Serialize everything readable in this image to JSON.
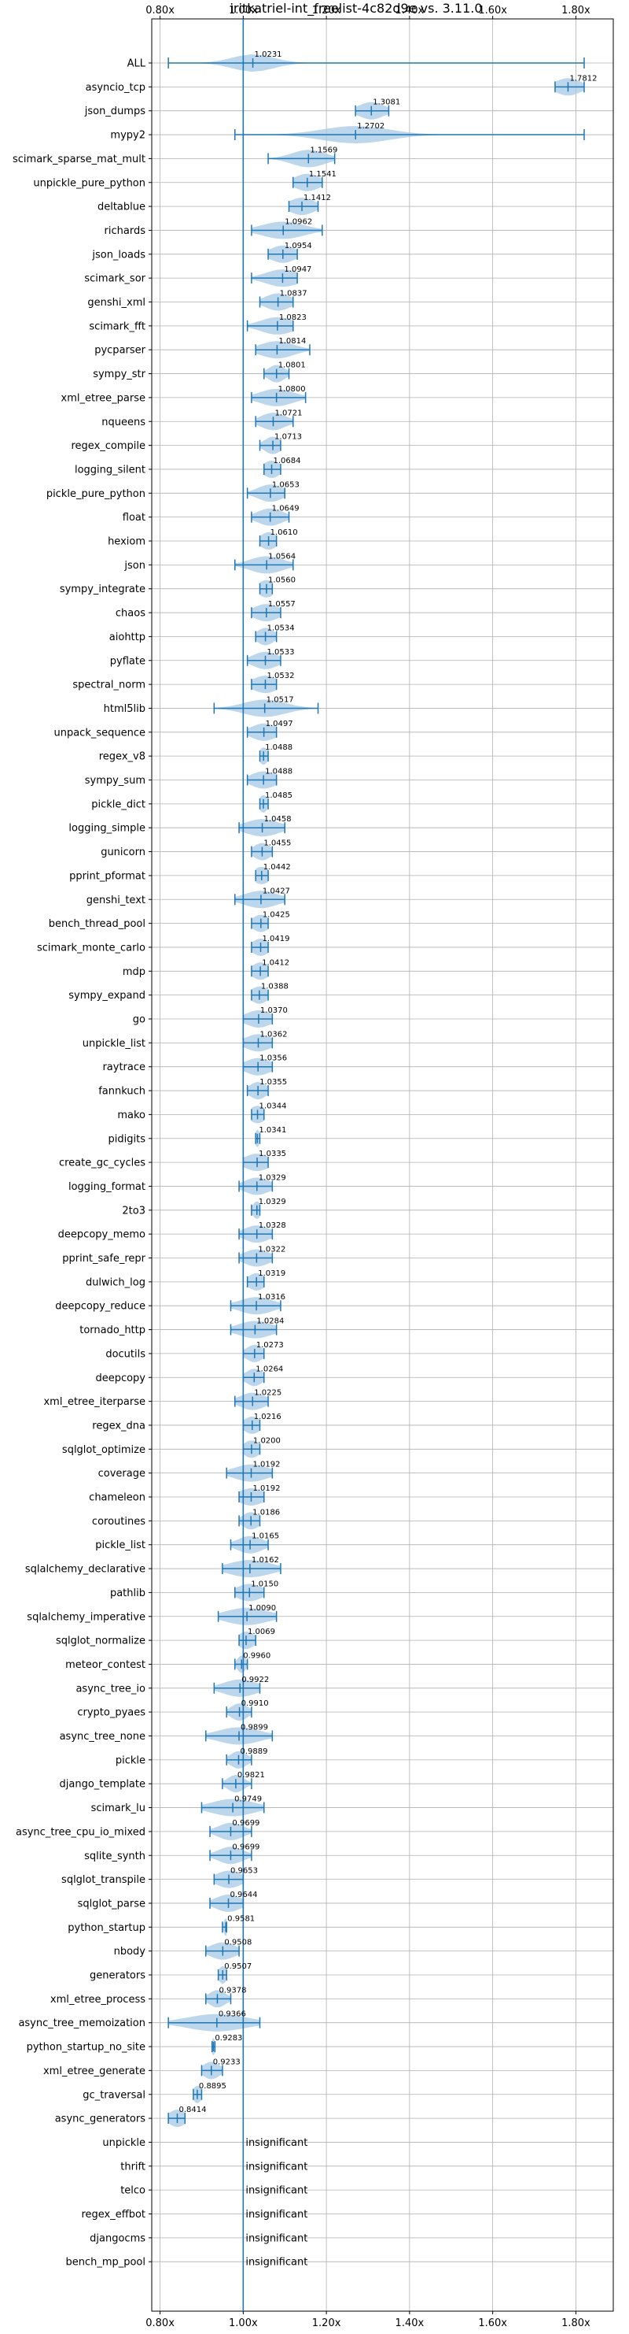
{
  "chart_data": {
    "type": "violin",
    "title": "iritkatriel-int_freelist-4c82d9e vs. 3.11.0",
    "xlabel": "",
    "ylabel": "",
    "xlim": [
      0.78,
      1.89
    ],
    "x_ticks": [
      0.8,
      1.0,
      1.2,
      1.4,
      1.6,
      1.8
    ],
    "x_tick_labels": [
      "0.80x",
      "1.00x",
      "1.20x",
      "1.40x",
      "1.60x",
      "1.80x"
    ],
    "grid": true,
    "reference_line": 1.0,
    "insignificant_label": "insignificant",
    "benchmarks": [
      {
        "name": "ALL",
        "median": 1.0231,
        "min": 0.82,
        "max": 1.82,
        "spread": 0.05
      },
      {
        "name": "asyncio_tcp",
        "median": 1.7812,
        "min": 1.75,
        "max": 1.82,
        "spread": 0.03
      },
      {
        "name": "json_dumps",
        "median": 1.3081,
        "min": 1.27,
        "max": 1.35,
        "spread": 0.03
      },
      {
        "name": "mypy2",
        "median": 1.2702,
        "min": 0.98,
        "max": 1.82,
        "spread": 0.08
      },
      {
        "name": "scimark_sparse_mat_mult",
        "median": 1.1569,
        "min": 1.06,
        "max": 1.22,
        "spread": 0.04
      },
      {
        "name": "unpickle_pure_python",
        "median": 1.1541,
        "min": 1.12,
        "max": 1.19,
        "spread": 0.03
      },
      {
        "name": "deltablue",
        "median": 1.1412,
        "min": 1.11,
        "max": 1.18,
        "spread": 0.03
      },
      {
        "name": "richards",
        "median": 1.0962,
        "min": 1.02,
        "max": 1.19,
        "spread": 0.05
      },
      {
        "name": "json_loads",
        "median": 1.0954,
        "min": 1.06,
        "max": 1.13,
        "spread": 0.03
      },
      {
        "name": "scimark_sor",
        "median": 1.0947,
        "min": 1.02,
        "max": 1.13,
        "spread": 0.04
      },
      {
        "name": "genshi_xml",
        "median": 1.0837,
        "min": 1.04,
        "max": 1.12,
        "spread": 0.03
      },
      {
        "name": "scimark_fft",
        "median": 1.0823,
        "min": 1.01,
        "max": 1.12,
        "spread": 0.04
      },
      {
        "name": "pycparser",
        "median": 1.0814,
        "min": 1.03,
        "max": 1.16,
        "spread": 0.04
      },
      {
        "name": "sympy_str",
        "median": 1.0801,
        "min": 1.05,
        "max": 1.11,
        "spread": 0.02
      },
      {
        "name": "xml_etree_parse",
        "median": 1.08,
        "min": 1.02,
        "max": 1.15,
        "spread": 0.04
      },
      {
        "name": "nqueens",
        "median": 1.0721,
        "min": 1.03,
        "max": 1.12,
        "spread": 0.03
      },
      {
        "name": "regex_compile",
        "median": 1.0713,
        "min": 1.04,
        "max": 1.09,
        "spread": 0.02
      },
      {
        "name": "logging_silent",
        "median": 1.0684,
        "min": 1.05,
        "max": 1.09,
        "spread": 0.02
      },
      {
        "name": "pickle_pure_python",
        "median": 1.0653,
        "min": 1.01,
        "max": 1.1,
        "spread": 0.03
      },
      {
        "name": "float",
        "median": 1.0649,
        "min": 1.02,
        "max": 1.11,
        "spread": 0.03
      },
      {
        "name": "hexiom",
        "median": 1.061,
        "min": 1.04,
        "max": 1.08,
        "spread": 0.02
      },
      {
        "name": "json",
        "median": 1.0564,
        "min": 0.98,
        "max": 1.12,
        "spread": 0.04
      },
      {
        "name": "sympy_integrate",
        "median": 1.056,
        "min": 1.04,
        "max": 1.07,
        "spread": 0.02
      },
      {
        "name": "chaos",
        "median": 1.0557,
        "min": 1.02,
        "max": 1.09,
        "spread": 0.03
      },
      {
        "name": "aiohttp",
        "median": 1.0534,
        "min": 1.03,
        "max": 1.08,
        "spread": 0.02
      },
      {
        "name": "pyflate",
        "median": 1.0533,
        "min": 1.01,
        "max": 1.09,
        "spread": 0.03
      },
      {
        "name": "spectral_norm",
        "median": 1.0532,
        "min": 1.02,
        "max": 1.08,
        "spread": 0.03
      },
      {
        "name": "html5lib",
        "median": 1.0517,
        "min": 0.93,
        "max": 1.18,
        "spread": 0.05
      },
      {
        "name": "unpack_sequence",
        "median": 1.0497,
        "min": 1.01,
        "max": 1.08,
        "spread": 0.03
      },
      {
        "name": "regex_v8",
        "median": 1.0488,
        "min": 1.04,
        "max": 1.06,
        "spread": 0.01
      },
      {
        "name": "sympy_sum",
        "median": 1.0488,
        "min": 1.01,
        "max": 1.08,
        "spread": 0.03
      },
      {
        "name": "pickle_dict",
        "median": 1.0485,
        "min": 1.04,
        "max": 1.06,
        "spread": 0.01
      },
      {
        "name": "logging_simple",
        "median": 1.0458,
        "min": 0.99,
        "max": 1.1,
        "spread": 0.04
      },
      {
        "name": "gunicorn",
        "median": 1.0455,
        "min": 1.02,
        "max": 1.07,
        "spread": 0.02
      },
      {
        "name": "pprint_pformat",
        "median": 1.0442,
        "min": 1.03,
        "max": 1.06,
        "spread": 0.02
      },
      {
        "name": "genshi_text",
        "median": 1.0427,
        "min": 0.98,
        "max": 1.1,
        "spread": 0.04
      },
      {
        "name": "bench_thread_pool",
        "median": 1.0425,
        "min": 1.02,
        "max": 1.06,
        "spread": 0.02
      },
      {
        "name": "scimark_monte_carlo",
        "median": 1.0419,
        "min": 1.02,
        "max": 1.06,
        "spread": 0.02
      },
      {
        "name": "mdp",
        "median": 1.0412,
        "min": 1.02,
        "max": 1.06,
        "spread": 0.02
      },
      {
        "name": "sympy_expand",
        "median": 1.0388,
        "min": 1.02,
        "max": 1.06,
        "spread": 0.02
      },
      {
        "name": "go",
        "median": 1.037,
        "min": 1.0,
        "max": 1.07,
        "spread": 0.03
      },
      {
        "name": "unpickle_list",
        "median": 1.0362,
        "min": 1.0,
        "max": 1.07,
        "spread": 0.03
      },
      {
        "name": "raytrace",
        "median": 1.0356,
        "min": 1.0,
        "max": 1.07,
        "spread": 0.03
      },
      {
        "name": "fannkuch",
        "median": 1.0355,
        "min": 1.01,
        "max": 1.06,
        "spread": 0.02
      },
      {
        "name": "mako",
        "median": 1.0344,
        "min": 1.02,
        "max": 1.05,
        "spread": 0.02
      },
      {
        "name": "pidigits",
        "median": 1.0341,
        "min": 1.03,
        "max": 1.04,
        "spread": 0.005
      },
      {
        "name": "create_gc_cycles",
        "median": 1.0335,
        "min": 1.0,
        "max": 1.06,
        "spread": 0.03
      },
      {
        "name": "logging_format",
        "median": 1.0329,
        "min": 0.99,
        "max": 1.07,
        "spread": 0.03
      },
      {
        "name": "2to3",
        "median": 1.0329,
        "min": 1.02,
        "max": 1.04,
        "spread": 0.01
      },
      {
        "name": "deepcopy_memo",
        "median": 1.0328,
        "min": 0.99,
        "max": 1.07,
        "spread": 0.03
      },
      {
        "name": "pprint_safe_repr",
        "median": 1.0322,
        "min": 0.99,
        "max": 1.07,
        "spread": 0.03
      },
      {
        "name": "dulwich_log",
        "median": 1.0319,
        "min": 1.01,
        "max": 1.05,
        "spread": 0.02
      },
      {
        "name": "deepcopy_reduce",
        "median": 1.0316,
        "min": 0.97,
        "max": 1.09,
        "spread": 0.04
      },
      {
        "name": "tornado_http",
        "median": 1.0284,
        "min": 0.97,
        "max": 1.08,
        "spread": 0.04
      },
      {
        "name": "docutils",
        "median": 1.0273,
        "min": 1.0,
        "max": 1.05,
        "spread": 0.02
      },
      {
        "name": "deepcopy",
        "median": 1.0264,
        "min": 1.0,
        "max": 1.05,
        "spread": 0.02
      },
      {
        "name": "xml_etree_iterparse",
        "median": 1.0225,
        "min": 0.98,
        "max": 1.06,
        "spread": 0.03
      },
      {
        "name": "regex_dna",
        "median": 1.0216,
        "min": 1.0,
        "max": 1.04,
        "spread": 0.02
      },
      {
        "name": "sqlglot_optimize",
        "median": 1.02,
        "min": 1.0,
        "max": 1.04,
        "spread": 0.02
      },
      {
        "name": "coverage",
        "median": 1.0192,
        "min": 0.96,
        "max": 1.07,
        "spread": 0.04
      },
      {
        "name": "chameleon",
        "median": 1.0192,
        "min": 0.99,
        "max": 1.05,
        "spread": 0.03
      },
      {
        "name": "coroutines",
        "median": 1.0186,
        "min": 0.99,
        "max": 1.04,
        "spread": 0.02
      },
      {
        "name": "pickle_list",
        "median": 1.0165,
        "min": 0.97,
        "max": 1.06,
        "spread": 0.03
      },
      {
        "name": "sqlalchemy_declarative",
        "median": 1.0162,
        "min": 0.95,
        "max": 1.09,
        "spread": 0.05
      },
      {
        "name": "pathlib",
        "median": 1.015,
        "min": 0.98,
        "max": 1.05,
        "spread": 0.03
      },
      {
        "name": "sqlalchemy_imperative",
        "median": 1.009,
        "min": 0.94,
        "max": 1.08,
        "spread": 0.05
      },
      {
        "name": "sqlglot_normalize",
        "median": 1.0069,
        "min": 0.99,
        "max": 1.03,
        "spread": 0.02
      },
      {
        "name": "meteor_contest",
        "median": 0.996,
        "min": 0.98,
        "max": 1.01,
        "spread": 0.01
      },
      {
        "name": "async_tree_io",
        "median": 0.9922,
        "min": 0.93,
        "max": 1.04,
        "spread": 0.04
      },
      {
        "name": "crypto_pyaes",
        "median": 0.991,
        "min": 0.96,
        "max": 1.02,
        "spread": 0.02
      },
      {
        "name": "async_tree_none",
        "median": 0.9899,
        "min": 0.91,
        "max": 1.07,
        "spread": 0.05
      },
      {
        "name": "pickle",
        "median": 0.9889,
        "min": 0.96,
        "max": 1.02,
        "spread": 0.02
      },
      {
        "name": "django_template",
        "median": 0.9821,
        "min": 0.95,
        "max": 1.02,
        "spread": 0.02
      },
      {
        "name": "scimark_lu",
        "median": 0.9749,
        "min": 0.9,
        "max": 1.05,
        "spread": 0.05
      },
      {
        "name": "async_tree_cpu_io_mixed",
        "median": 0.9699,
        "min": 0.92,
        "max": 1.02,
        "spread": 0.03
      },
      {
        "name": "sqlite_synth",
        "median": 0.9699,
        "min": 0.92,
        "max": 1.02,
        "spread": 0.03
      },
      {
        "name": "sqlglot_transpile",
        "median": 0.9653,
        "min": 0.93,
        "max": 1.0,
        "spread": 0.03
      },
      {
        "name": "sqlglot_parse",
        "median": 0.9644,
        "min": 0.92,
        "max": 1.0,
        "spread": 0.03
      },
      {
        "name": "python_startup",
        "median": 0.9581,
        "min": 0.95,
        "max": 0.96,
        "spread": 0.005
      },
      {
        "name": "nbody",
        "median": 0.9508,
        "min": 0.91,
        "max": 0.99,
        "spread": 0.03
      },
      {
        "name": "generators",
        "median": 0.9507,
        "min": 0.94,
        "max": 0.96,
        "spread": 0.01
      },
      {
        "name": "xml_etree_process",
        "median": 0.9378,
        "min": 0.91,
        "max": 0.97,
        "spread": 0.02
      },
      {
        "name": "async_tree_memoization",
        "median": 0.9366,
        "min": 0.82,
        "max": 1.04,
        "spread": 0.07
      },
      {
        "name": "python_startup_no_site",
        "median": 0.9283,
        "min": 0.925,
        "max": 0.932,
        "spread": 0.004
      },
      {
        "name": "xml_etree_generate",
        "median": 0.9233,
        "min": 0.9,
        "max": 0.95,
        "spread": 0.02
      },
      {
        "name": "gc_traversal",
        "median": 0.8895,
        "min": 0.88,
        "max": 0.9,
        "spread": 0.01
      },
      {
        "name": "async_generators",
        "median": 0.8414,
        "min": 0.82,
        "max": 0.86,
        "spread": 0.02
      },
      {
        "name": "unpickle",
        "insignificant": true
      },
      {
        "name": "thrift",
        "insignificant": true
      },
      {
        "name": "telco",
        "insignificant": true
      },
      {
        "name": "regex_effbot",
        "insignificant": true
      },
      {
        "name": "djangocms",
        "insignificant": true
      },
      {
        "name": "bench_mp_pool",
        "insignificant": true
      }
    ],
    "colors": {
      "violin_fill": "#a6c8e6",
      "marker": "#1f77b4",
      "grid": "#b0b0b0",
      "axis": "#000000"
    }
  }
}
